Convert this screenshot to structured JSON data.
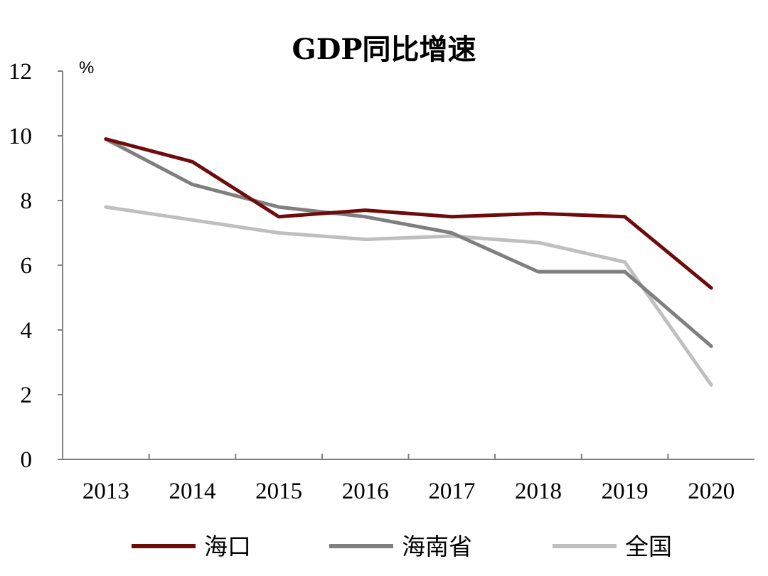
{
  "chart_data": {
    "type": "line",
    "title": "GDP同比增速",
    "unit": "%",
    "categories": [
      "2013",
      "2014",
      "2015",
      "2016",
      "2017",
      "2018",
      "2019",
      "2020"
    ],
    "ylim": [
      0,
      12
    ],
    "yticks": [
      "0",
      "2",
      "4",
      "6",
      "8",
      "10",
      "12"
    ],
    "grid": false,
    "legend_position": "bottom",
    "series": [
      {
        "name": "海口",
        "color": "#6e0b0b",
        "values": [
          9.9,
          9.2,
          7.5,
          7.7,
          7.5,
          7.6,
          7.5,
          5.3
        ]
      },
      {
        "name": "海南省",
        "color": "#7f7f7f",
        "values": [
          9.9,
          8.5,
          7.8,
          7.5,
          7.0,
          5.8,
          5.8,
          3.5
        ]
      },
      {
        "name": "全国",
        "color": "#bfbfbf",
        "values": [
          7.8,
          7.4,
          7.0,
          6.8,
          6.9,
          6.7,
          6.1,
          2.3
        ]
      }
    ]
  }
}
